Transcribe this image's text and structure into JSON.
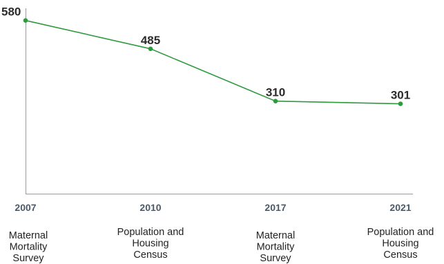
{
  "chart_data": {
    "type": "line",
    "title": "",
    "xlabel": "",
    "ylabel": "",
    "ylim": [
      0,
      630
    ],
    "grid": false,
    "legend": "none",
    "categories": [
      "2007",
      "2010",
      "2017",
      "2021"
    ],
    "sources": [
      "Maternal Mortality Survey",
      "Population and Housing Census",
      "Maternal Mortality Survey",
      "Population and Housing Census"
    ],
    "series": [
      {
        "values": [
          580,
          485,
          310,
          301
        ],
        "data_labels": [
          "580",
          "485",
          "310",
          "301"
        ],
        "color": "#2e9a3e"
      }
    ]
  },
  "colors": {
    "line": "#2e9a3e",
    "axis": "#9a9a9a",
    "value_text": "#2b2b2b",
    "year_text": "#4a5a6a",
    "source_text": "#222222"
  }
}
